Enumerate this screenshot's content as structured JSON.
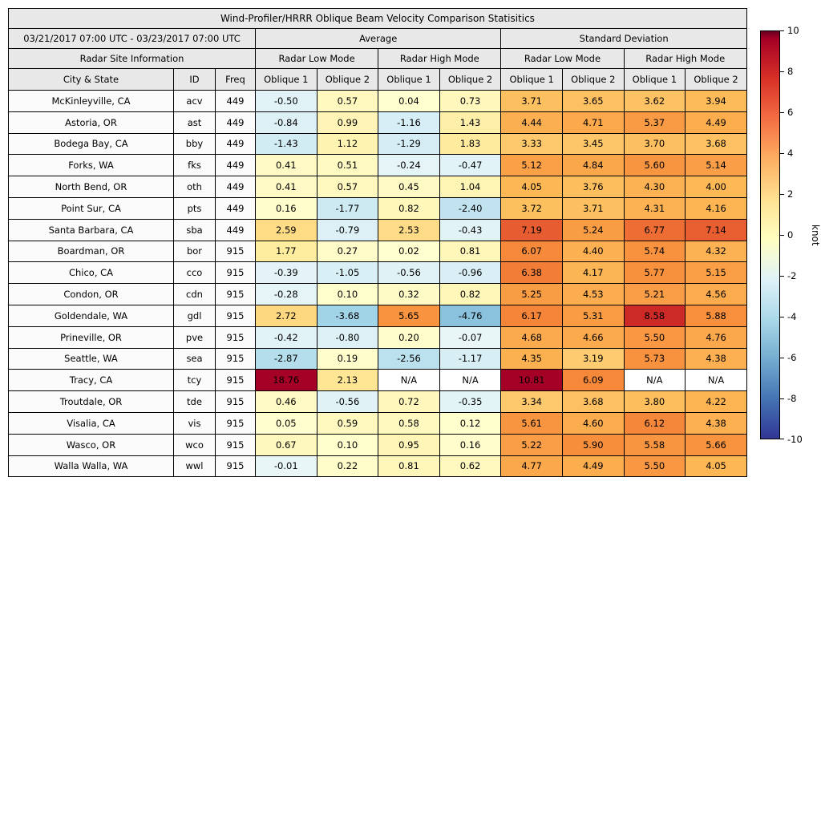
{
  "figure_title": "Wind-Profiler/HRRR Oblique Beam Velocity Comparison Statisitics",
  "table": {
    "period": "03/21/2017 07:00 UTC - 03/23/2017 07:00 UTC",
    "group_average": "Average",
    "group_std": "Standard Deviation",
    "site_info": "Radar Site Information",
    "low_mode": "Radar Low Mode",
    "high_mode": "Radar High Mode",
    "col_city": "City & State",
    "col_id": "ID",
    "col_freq": "Freq",
    "col_ob1": "Oblique 1",
    "col_ob2": "Oblique 2",
    "na_text": "N/A"
  },
  "colorbar": {
    "label": "knot",
    "min": -10,
    "max": 10,
    "ticks": [
      10,
      8,
      6,
      4,
      2,
      0,
      -2,
      -4,
      -6,
      -8,
      -10
    ]
  },
  "colors": {
    "header_bg": "#e8e8e8",
    "grid": "#000000",
    "na_bg": "#ffffff",
    "site_bg": "#fbfbfb",
    "warm_anchors": [
      [
        0,
        "#ffffd0"
      ],
      [
        2,
        "#fee999"
      ],
      [
        4,
        "#fdb956"
      ],
      [
        6,
        "#f78c3b"
      ],
      [
        8,
        "#dc3b28"
      ],
      [
        10,
        "#a50026"
      ]
    ],
    "cool_anchors": [
      [
        -10,
        "#313695"
      ],
      [
        -8,
        "#4575b4"
      ],
      [
        -6,
        "#6fabd3"
      ],
      [
        -4,
        "#9ad0e5"
      ],
      [
        -2,
        "#c9e8f2"
      ],
      [
        0,
        "#e9f6f8"
      ]
    ],
    "colorbar_stops": [
      "#67001f",
      "#a50026",
      "#d73027",
      "#f46d43",
      "#fdae61",
      "#fee090",
      "#ffffbf",
      "#e0f3f8",
      "#abd9e9",
      "#74add1",
      "#4575b4",
      "#313695"
    ]
  },
  "chart_data": {
    "type": "heatmap",
    "title": "Wind-Profiler/HRRR Oblique Beam Velocity Comparison Statisitics",
    "unit": "knot",
    "value_range": [
      -10,
      10
    ],
    "value_columns": [
      "avg_low_oblique1",
      "avg_low_oblique2",
      "avg_high_oblique1",
      "avg_high_oblique2",
      "std_low_oblique1",
      "std_low_oblique2",
      "std_high_oblique1",
      "std_high_oblique2"
    ],
    "rows": [
      {
        "city": "McKinleyville, CA",
        "id": "acv",
        "freq": 449,
        "values": [
          -0.5,
          0.57,
          0.04,
          0.73,
          3.71,
          3.65,
          3.62,
          3.94
        ]
      },
      {
        "city": "Astoria, OR",
        "id": "ast",
        "freq": 449,
        "values": [
          -0.84,
          0.99,
          -1.16,
          1.43,
          4.44,
          4.71,
          5.37,
          4.49
        ]
      },
      {
        "city": "Bodega Bay, CA",
        "id": "bby",
        "freq": 449,
        "values": [
          -1.43,
          1.12,
          -1.29,
          1.83,
          3.33,
          3.45,
          3.7,
          3.68
        ]
      },
      {
        "city": "Forks, WA",
        "id": "fks",
        "freq": 449,
        "values": [
          0.41,
          0.51,
          -0.24,
          -0.47,
          5.12,
          4.84,
          5.6,
          5.14
        ]
      },
      {
        "city": "North Bend, OR",
        "id": "oth",
        "freq": 449,
        "values": [
          0.41,
          0.57,
          0.45,
          1.04,
          4.05,
          3.76,
          4.3,
          4.0
        ]
      },
      {
        "city": "Point Sur, CA",
        "id": "pts",
        "freq": 449,
        "values": [
          0.16,
          -1.77,
          0.82,
          -2.4,
          3.72,
          3.71,
          4.31,
          4.16
        ]
      },
      {
        "city": "Santa Barbara, CA",
        "id": "sba",
        "freq": 449,
        "values": [
          2.59,
          -0.79,
          2.53,
          -0.43,
          7.19,
          5.24,
          6.77,
          7.14
        ]
      },
      {
        "city": "Boardman, OR",
        "id": "bor",
        "freq": 915,
        "values": [
          1.77,
          0.27,
          0.02,
          0.81,
          6.07,
          4.4,
          5.74,
          4.32
        ]
      },
      {
        "city": "Chico, CA",
        "id": "cco",
        "freq": 915,
        "values": [
          -0.39,
          -1.05,
          -0.56,
          -0.96,
          6.38,
          4.17,
          5.77,
          5.15
        ]
      },
      {
        "city": "Condon, OR",
        "id": "cdn",
        "freq": 915,
        "values": [
          -0.28,
          0.1,
          0.32,
          0.82,
          5.25,
          4.53,
          5.21,
          4.56
        ]
      },
      {
        "city": "Goldendale, WA",
        "id": "gdl",
        "freq": 915,
        "values": [
          2.72,
          -3.68,
          5.65,
          -4.76,
          6.17,
          5.31,
          8.58,
          5.88
        ]
      },
      {
        "city": "Prineville, OR",
        "id": "pve",
        "freq": 915,
        "values": [
          -0.42,
          -0.8,
          0.2,
          -0.07,
          4.68,
          4.66,
          5.5,
          4.76
        ]
      },
      {
        "city": "Seattle, WA",
        "id": "sea",
        "freq": 915,
        "values": [
          -2.87,
          0.19,
          -2.56,
          -1.17,
          4.35,
          3.19,
          5.73,
          4.38
        ]
      },
      {
        "city": "Tracy, CA",
        "id": "tcy",
        "freq": 915,
        "values": [
          18.76,
          2.13,
          "N/A",
          "N/A",
          10.81,
          6.09,
          "N/A",
          "N/A"
        ]
      },
      {
        "city": "Troutdale, OR",
        "id": "tde",
        "freq": 915,
        "values": [
          0.46,
          -0.56,
          0.72,
          -0.35,
          3.34,
          3.68,
          3.8,
          4.22
        ]
      },
      {
        "city": "Visalia, CA",
        "id": "vis",
        "freq": 915,
        "values": [
          0.05,
          0.59,
          0.58,
          0.12,
          5.61,
          4.6,
          6.12,
          4.38
        ]
      },
      {
        "city": "Wasco, OR",
        "id": "wco",
        "freq": 915,
        "values": [
          0.67,
          0.1,
          0.95,
          0.16,
          5.22,
          5.9,
          5.58,
          5.66
        ]
      },
      {
        "city": "Walla Walla, WA",
        "id": "wwl",
        "freq": 915,
        "values": [
          -0.01,
          0.22,
          0.81,
          0.62,
          4.77,
          4.49,
          5.5,
          4.05
        ]
      }
    ]
  }
}
